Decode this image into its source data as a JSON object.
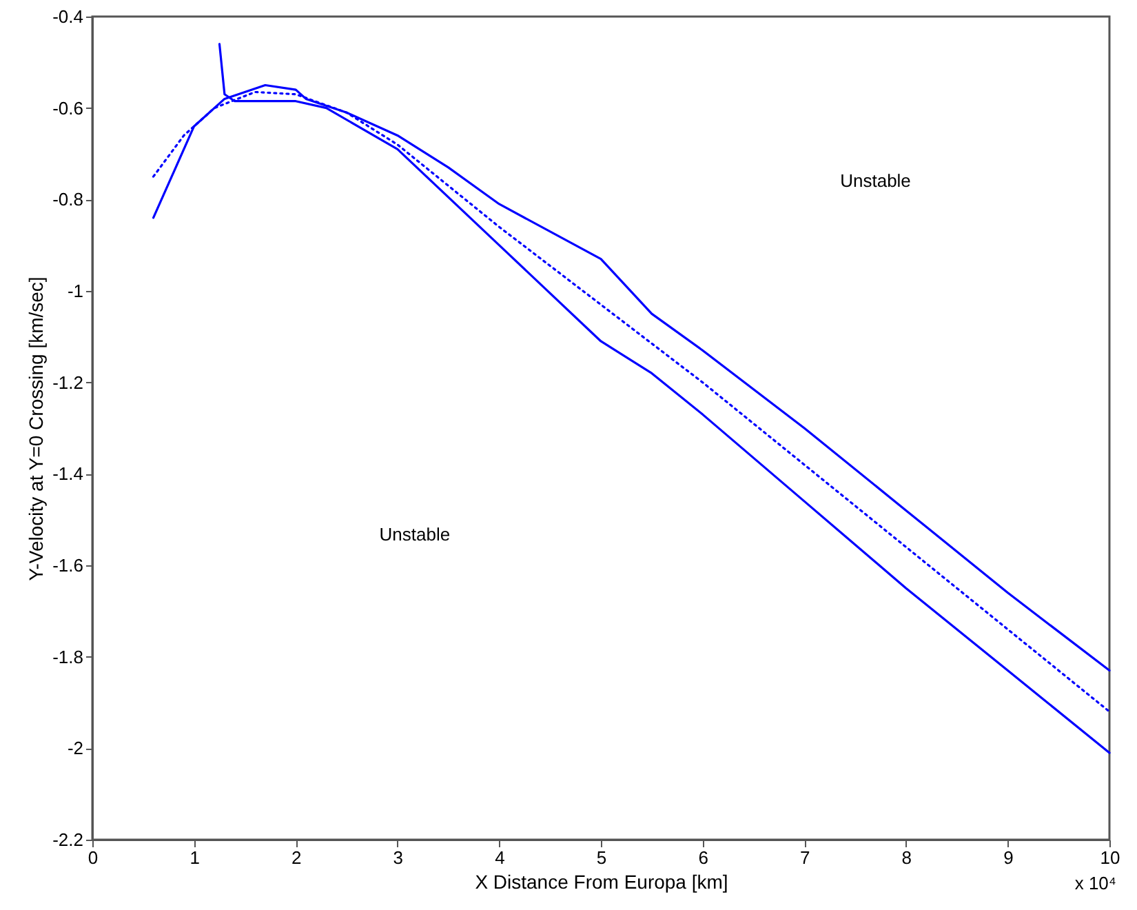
{
  "chart_data": {
    "type": "line",
    "xlabel": "X Distance From Europa [km]",
    "ylabel": "Y-Velocity at Y=0 Crossing [km/sec]",
    "xlim": [
      0,
      10
    ],
    "xticks": [
      0,
      1,
      2,
      3,
      4,
      5,
      6,
      7,
      8,
      9,
      10
    ],
    "ylim": [
      -2.2,
      -0.4
    ],
    "yticks": [
      -2.2,
      -2,
      -1.8,
      -1.6,
      -1.4,
      -1.2,
      -1,
      -0.8,
      -0.6,
      -0.4
    ],
    "grid": false,
    "legend": false,
    "marker": "none",
    "series": [
      {
        "color": "#0000ff",
        "line_style": "solid",
        "x": [
          0.6,
          0.8,
          1.0,
          1.3,
          1.7,
          2.0,
          2.1,
          2.5,
          3.0,
          3.5,
          4.0,
          5.0,
          5.5,
          6.0,
          7.0,
          8.0,
          9.0,
          10.0
        ],
        "values": [
          -0.84,
          -0.74,
          -0.64,
          -0.58,
          -0.55,
          -0.56,
          -0.58,
          -0.61,
          -0.66,
          -0.73,
          -0.81,
          -0.93,
          -1.05,
          -1.13,
          -1.3,
          -1.48,
          -1.66,
          -1.83
        ]
      },
      {
        "color": "#0000ff",
        "line_style": "solid",
        "x": [
          1.25,
          1.3,
          1.4,
          2.0,
          2.3,
          3.0,
          4.0,
          5.0,
          5.5,
          6.0,
          7.0,
          8.0,
          9.0,
          10.0
        ],
        "values": [
          -0.46,
          -0.57,
          -0.585,
          -0.585,
          -0.6,
          -0.69,
          -0.9,
          -1.11,
          -1.18,
          -1.27,
          -1.46,
          -1.65,
          -1.83,
          -2.01
        ]
      },
      {
        "color": "#0000ff",
        "line_style": "dotted",
        "x": [
          0.6,
          0.9,
          1.2,
          1.6,
          2.0,
          2.5,
          3.0,
          4.0,
          5.0,
          6.0,
          7.0,
          8.0,
          9.0,
          10.0
        ],
        "values": [
          -0.75,
          -0.66,
          -0.6,
          -0.565,
          -0.57,
          -0.61,
          -0.68,
          -0.86,
          -1.03,
          -1.2,
          -1.38,
          -1.56,
          -1.74,
          -1.92
        ]
      }
    ],
    "annotations": [
      "Unstable",
      "Unstable",
      "x 10⁴"
    ]
  }
}
